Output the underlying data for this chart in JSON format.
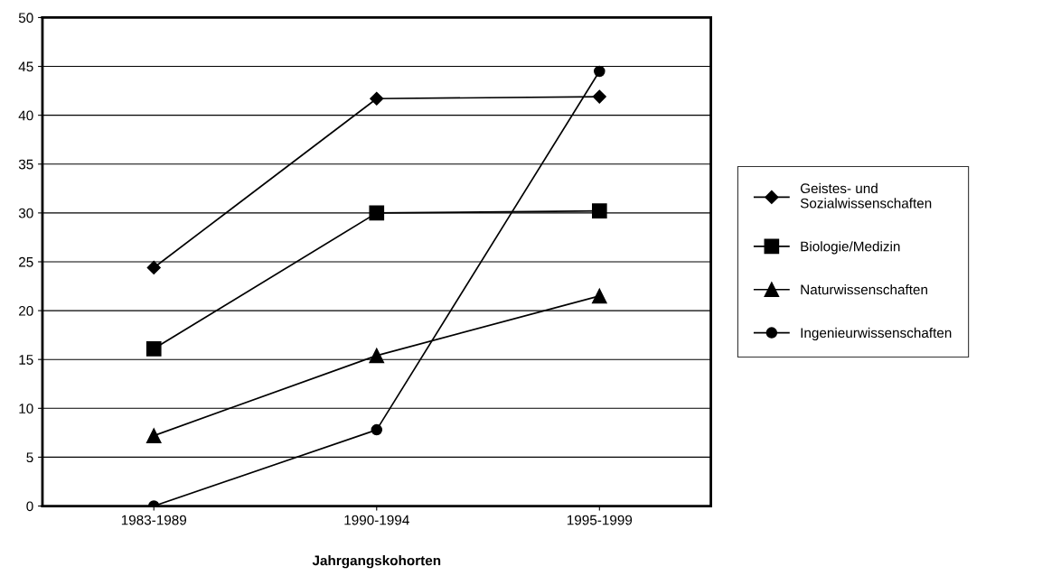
{
  "chart_data": {
    "type": "line",
    "xlabel": "Jahrgangskohorten",
    "categories": [
      "1983-1989",
      "1990-1994",
      "1995-1999"
    ],
    "series": [
      {
        "name": "Geistes- und\nSozialwissenschaften",
        "color": "#000000",
        "marker": "diamond",
        "values": [
          24.4,
          41.7,
          41.9
        ]
      },
      {
        "name": "Biologie/Medizin",
        "color": "#000000",
        "marker": "square",
        "values": [
          16.1,
          30.0,
          30.2
        ]
      },
      {
        "name": "Naturwissenschaften",
        "color": "#000000",
        "marker": "triangle",
        "values": [
          7.2,
          15.4,
          21.5
        ]
      },
      {
        "name": "Ingenieurwissenschaften",
        "color": "#000000",
        "marker": "circle",
        "values": [
          0,
          7.8,
          44.5
        ]
      }
    ],
    "ylim": [
      0,
      50
    ],
    "yticks": [
      0,
      5,
      10,
      15,
      20,
      25,
      30,
      35,
      40,
      45,
      50
    ],
    "grid": "y",
    "legend": "right",
    "line_style": "solid"
  }
}
